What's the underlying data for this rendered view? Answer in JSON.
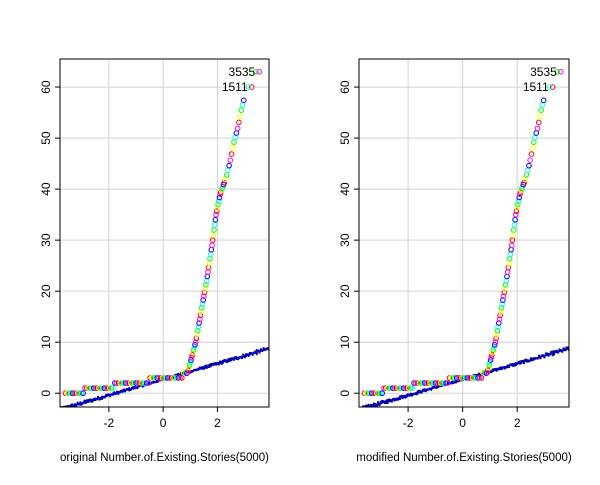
{
  "chart_data": [
    {
      "type": "scatter",
      "title": "",
      "xlabel": "original Number.of.Existing.Stories(5000)",
      "ylabel": "",
      "xlim": [
        -3.8,
        3.9
      ],
      "ylim": [
        -2.7,
        65.5
      ],
      "x_ticks": [
        -2,
        0,
        2
      ],
      "y_ticks": [
        0,
        10,
        20,
        30,
        40,
        50,
        60
      ],
      "grid": true,
      "annotations": [
        {
          "label": "3535",
          "x": 3.54,
          "y": 63
        },
        {
          "label": "1511",
          "x": 3.26,
          "y": 60
        }
      ],
      "sample_points": [
        {
          "x": -3.6,
          "y": 0
        },
        {
          "x": -3.2,
          "y": 0
        },
        {
          "x": -3.0,
          "y": 0
        },
        {
          "x": -2.8,
          "y": 1
        },
        {
          "x": -2.0,
          "y": 1
        },
        {
          "x": -1.6,
          "y": 2
        },
        {
          "x": -0.8,
          "y": 2
        },
        {
          "x": -0.2,
          "y": 3
        },
        {
          "x": 0.6,
          "y": 3
        },
        {
          "x": 0.9,
          "y": 4
        },
        {
          "x": 1.05,
          "y": 7
        },
        {
          "x": 1.2,
          "y": 10
        },
        {
          "x": 1.4,
          "y": 16
        },
        {
          "x": 1.6,
          "y": 22
        },
        {
          "x": 1.8,
          "y": 29
        },
        {
          "x": 1.95,
          "y": 35
        },
        {
          "x": 2.1,
          "y": 39
        },
        {
          "x": 2.3,
          "y": 42
        },
        {
          "x": 2.45,
          "y": 45
        },
        {
          "x": 2.6,
          "y": 49
        },
        {
          "x": 2.75,
          "y": 52
        },
        {
          "x": 2.9,
          "y": 56
        },
        {
          "x": 3.0,
          "y": 58
        },
        {
          "x": 3.26,
          "y": 60
        },
        {
          "x": 3.54,
          "y": 63
        }
      ],
      "reference_line": {
        "intercept": 2.7,
        "slope": 1.55
      },
      "envelope_band": {
        "x_range": [
          -3.8,
          3.9
        ],
        "color": "#00008b"
      }
    },
    {
      "type": "scatter",
      "title": "",
      "xlabel": "modified Number.of.Existing.Stories(5000)",
      "ylabel": "",
      "xlim": [
        -3.8,
        3.9
      ],
      "ylim": [
        -2.7,
        65.5
      ],
      "x_ticks": [
        -2,
        0,
        2
      ],
      "y_ticks": [
        0,
        10,
        20,
        30,
        40,
        50,
        60
      ],
      "grid": true,
      "annotations": [
        {
          "label": "3535",
          "x": 3.6,
          "y": 63
        },
        {
          "label": "1511",
          "x": 3.3,
          "y": 60
        }
      ],
      "sample_points": [
        {
          "x": -3.6,
          "y": 0
        },
        {
          "x": -3.2,
          "y": 0
        },
        {
          "x": -3.0,
          "y": 0
        },
        {
          "x": -2.8,
          "y": 1
        },
        {
          "x": -2.0,
          "y": 1
        },
        {
          "x": -1.6,
          "y": 2
        },
        {
          "x": -0.8,
          "y": 2
        },
        {
          "x": -0.2,
          "y": 3
        },
        {
          "x": 0.6,
          "y": 3
        },
        {
          "x": 0.9,
          "y": 4
        },
        {
          "x": 1.05,
          "y": 7
        },
        {
          "x": 1.2,
          "y": 10
        },
        {
          "x": 1.4,
          "y": 16
        },
        {
          "x": 1.6,
          "y": 22
        },
        {
          "x": 1.8,
          "y": 29
        },
        {
          "x": 1.95,
          "y": 35
        },
        {
          "x": 2.1,
          "y": 39
        },
        {
          "x": 2.3,
          "y": 42
        },
        {
          "x": 2.45,
          "y": 45
        },
        {
          "x": 2.6,
          "y": 49
        },
        {
          "x": 2.75,
          "y": 52
        },
        {
          "x": 2.9,
          "y": 56
        },
        {
          "x": 3.0,
          "y": 58
        },
        {
          "x": 3.3,
          "y": 60
        },
        {
          "x": 3.6,
          "y": 63
        }
      ],
      "reference_line": {
        "intercept": 2.7,
        "slope": 1.55
      },
      "envelope_band": {
        "x_range": [
          -3.8,
          3.9
        ],
        "color": "#00008b"
      }
    }
  ],
  "colors": {
    "axis": "#000000",
    "grid": "#d3d3d3",
    "reference_line": "#0000cd",
    "band": "#00008b",
    "point_palette": [
      "#ff0000",
      "#ffff00",
      "#00ff00",
      "#00ffff",
      "#0000ff",
      "#ff00ff"
    ]
  }
}
